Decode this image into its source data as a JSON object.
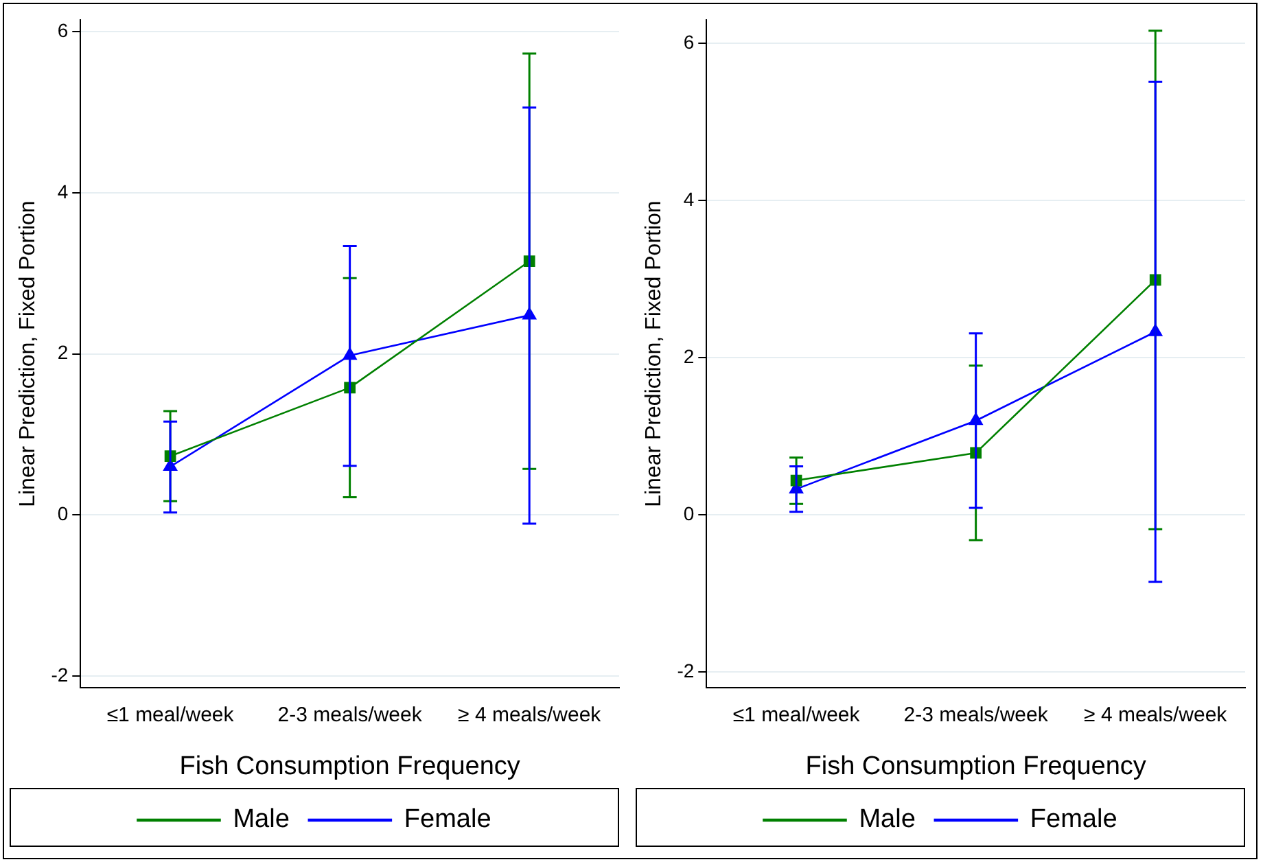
{
  "chart_data": [
    {
      "type": "line",
      "xlabel": "Fish Consumption Frequency",
      "ylabel": "Linear Prediction, Fixed Portion",
      "categories": [
        "≤1 meal/week",
        "2-3 meals/week",
        "≥ 4 meals/week"
      ],
      "ylim": [
        -2.15,
        6.15
      ],
      "yticks": [
        -2,
        0,
        2,
        4,
        6
      ],
      "grid": "y",
      "legend": "bottom",
      "series": [
        {
          "name": "Male",
          "color": "#008000",
          "marker": "square",
          "values": [
            0.73,
            1.58,
            3.15
          ],
          "errors": [
            [
              0.17,
              1.29
            ],
            [
              0.22,
              2.94
            ],
            [
              0.57,
              5.73
            ]
          ]
        },
        {
          "name": "Female",
          "color": "#0000ff",
          "marker": "triangle",
          "values": [
            0.6,
            1.98,
            2.48
          ],
          "errors": [
            [
              0.03,
              1.16
            ],
            [
              0.61,
              3.34
            ],
            [
              -0.11,
              5.06
            ]
          ]
        }
      ]
    },
    {
      "type": "line",
      "xlabel": "Fish Consumption Frequency",
      "ylabel": "Linear Prediction, Fixed Portion",
      "categories": [
        "≤1 meal/week",
        "2-3 meals/week",
        "≥ 4 meals/week"
      ],
      "ylim": [
        -2.2,
        6.3
      ],
      "yticks": [
        -2,
        0,
        2,
        4,
        6
      ],
      "grid": "y",
      "legend": "bottom",
      "series": [
        {
          "name": "Male",
          "color": "#008000",
          "marker": "square",
          "values": [
            0.44,
            0.79,
            2.99
          ],
          "errors": [
            [
              0.14,
              0.73
            ],
            [
              -0.32,
              1.9
            ],
            [
              -0.18,
              6.16
            ]
          ]
        },
        {
          "name": "Female",
          "color": "#0000ff",
          "marker": "triangle",
          "values": [
            0.33,
            1.2,
            2.33
          ],
          "errors": [
            [
              0.04,
              0.62
            ],
            [
              0.09,
              2.31
            ],
            [
              -0.85,
              5.51
            ]
          ]
        }
      ]
    }
  ]
}
